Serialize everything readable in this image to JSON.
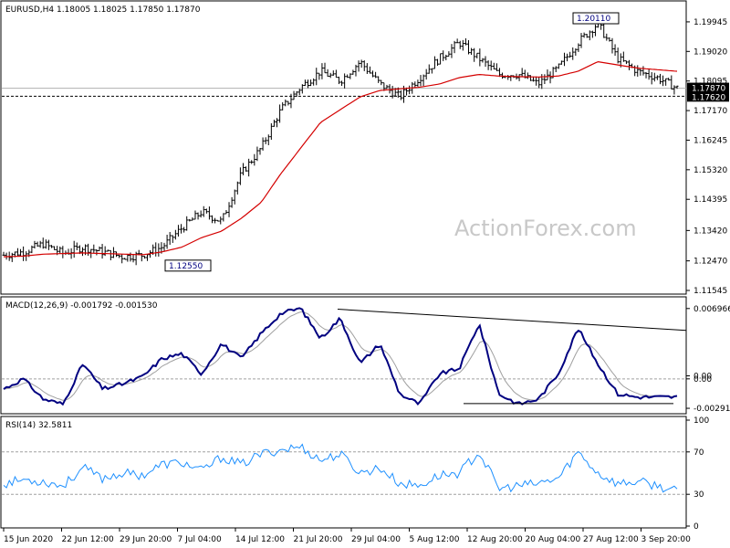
{
  "chart_data": [
    {
      "type": "ohlc",
      "title": "EURUSD,H4  1.18005 1.18025 1.17850 1.17870",
      "watermark": "ActionForex.com",
      "ylim": [
        1.11545,
        1.2
      ],
      "y_ticks": [
        "1.19945",
        "1.19020",
        "1.18095",
        "1.17170",
        "1.16245",
        "1.15320",
        "1.14395",
        "1.13420",
        "1.12470",
        "1.11545"
      ],
      "last_price_label": "1.17870",
      "support_label": "1.17620",
      "support_level": 1.1762,
      "annotations": [
        {
          "text": "1.20110",
          "value": 1.2011,
          "kind": "high"
        },
        {
          "text": "1.12550",
          "value": 1.1255,
          "kind": "low"
        }
      ],
      "moving_average_color": "#d40000",
      "bar_color": "#000000",
      "anchors_close": [
        1.1265,
        1.1275,
        1.13,
        1.127,
        1.129,
        1.1275,
        1.126,
        1.1265,
        1.129,
        1.135,
        1.14,
        1.137,
        1.152,
        1.16,
        1.172,
        1.179,
        1.184,
        1.181,
        1.187,
        1.18,
        1.176,
        1.182,
        1.188,
        1.193,
        1.188,
        1.183,
        1.183,
        1.18,
        1.185,
        1.193,
        1.199,
        1.188,
        1.184,
        1.182,
        1.1787
      ],
      "anchors_ma": [
        1.126,
        1.1262,
        1.1268,
        1.127,
        1.1272,
        1.127,
        1.1268,
        1.1266,
        1.1275,
        1.129,
        1.132,
        1.134,
        1.138,
        1.143,
        1.152,
        1.16,
        1.168,
        1.172,
        1.176,
        1.178,
        1.1785,
        1.179,
        1.18,
        1.182,
        1.183,
        1.1825,
        1.1823,
        1.1822,
        1.1825,
        1.184,
        1.187,
        1.186,
        1.185,
        1.1845,
        1.184
      ]
    },
    {
      "type": "line",
      "title": "MACD(12,26,9) -0.001792 -0.001530",
      "ylim": [
        -0.003,
        0.0074
      ],
      "y_ticks": [
        "0.006966",
        "0.00",
        "0.00",
        "-0.002913"
      ],
      "macd_color": "#000080",
      "signal_color": "#a0a0a0",
      "trendline_color": "#000000",
      "anchors_macd": [
        -0.001,
        0.0,
        -0.002,
        -0.0025,
        0.0015,
        -0.001,
        -0.0005,
        0.0002,
        0.002,
        0.0025,
        0.0005,
        0.0035,
        0.002,
        0.0045,
        0.0065,
        0.007,
        0.004,
        0.006,
        0.0015,
        0.0035,
        -0.0015,
        -0.0025,
        0.0005,
        0.001,
        0.0055,
        -0.0015,
        -0.0025,
        -0.002,
        0.0005,
        0.005,
        0.0015,
        -0.0015,
        -0.0018,
        -0.0018,
        -0.0018
      ],
      "trendline": [
        0.0069,
        0.0048
      ],
      "support_line": -0.00245
    },
    {
      "type": "line",
      "title": "RSI(14) 32.5811",
      "ylim": [
        0,
        100
      ],
      "y_ticks": [
        "100",
        "70",
        "30",
        "0"
      ],
      "levels": [
        70,
        30
      ],
      "rsi_color": "#1e90ff",
      "anchors_rsi": [
        40,
        44,
        42,
        38,
        55,
        45,
        50,
        48,
        58,
        60,
        52,
        65,
        58,
        68,
        72,
        75,
        62,
        68,
        50,
        55,
        40,
        38,
        48,
        50,
        70,
        35,
        38,
        40,
        45,
        70,
        50,
        40,
        42,
        38,
        32.6
      ]
    }
  ],
  "x_axis": {
    "labels": [
      "15 Jun 2020",
      "22 Jun 12:00",
      "29 Jun 20:00",
      "7 Jul 04:00",
      "14 Jul 12:00",
      "21 Jul 20:00",
      "29 Jul 04:00",
      "5 Aug 12:00",
      "12 Aug 20:00",
      "20 Aug 04:00",
      "27 Aug 12:00",
      "3 Sep 20:00"
    ]
  }
}
